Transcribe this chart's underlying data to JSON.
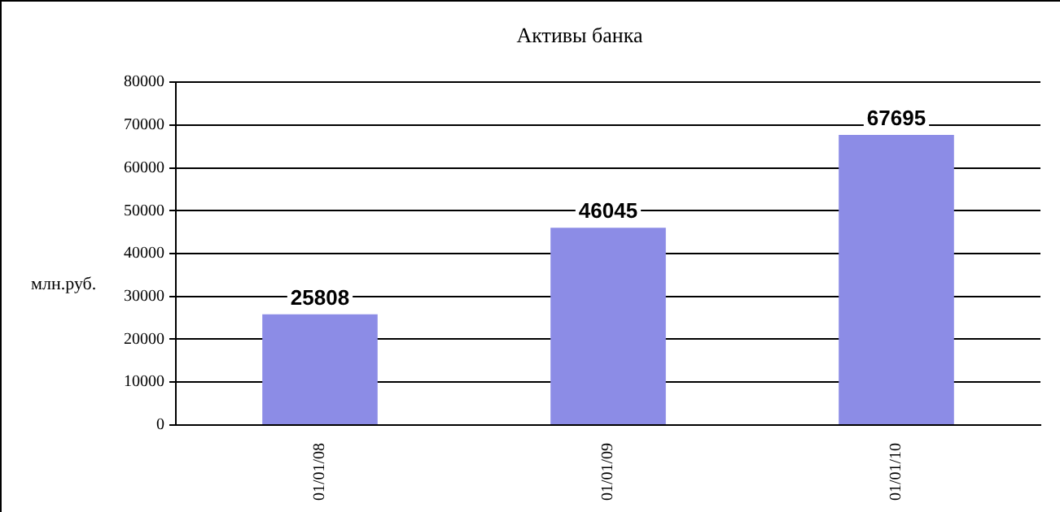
{
  "chart_data": {
    "type": "bar",
    "title": "Активы банка",
    "ylabel": "млн.руб.",
    "categories": [
      "01/01/08",
      "01/01/09",
      "01/01/10"
    ],
    "values": [
      25808,
      46045,
      67695
    ],
    "color": "#8c8ce6",
    "ylim": [
      0,
      80000
    ],
    "yticks": [
      0,
      10000,
      20000,
      30000,
      40000,
      50000,
      60000,
      70000,
      80000
    ],
    "grid": "y",
    "data_labels": true,
    "legend": false
  }
}
